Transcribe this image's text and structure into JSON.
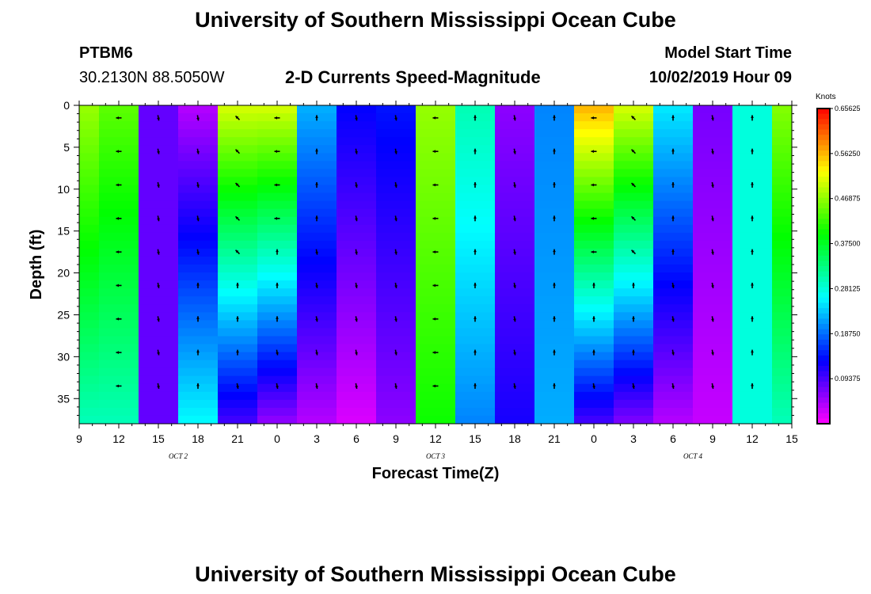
{
  "header": {
    "title_top": "University of Southern Mississippi Ocean Cube",
    "title_bottom": "University of Southern Mississippi Ocean Cube",
    "station": "PTBM6",
    "coords": "30.2130N 88.5050W",
    "subtitle": "2-D Currents Speed-Magnitude",
    "model_start_label": "Model Start Time",
    "model_start_value": "10/02/2019 Hour 09"
  },
  "chart_data": {
    "type": "heatmap",
    "title": "2-D Currents Speed-Magnitude",
    "xlabel": "Forecast Time(Z)",
    "ylabel": "Depth (ft)",
    "x_tick_labels": [
      "9",
      "12",
      "15",
      "18",
      "21",
      "0",
      "3",
      "6",
      "9",
      "12",
      "15",
      "18",
      "21",
      "0",
      "3",
      "6",
      "9",
      "12",
      "15"
    ],
    "day_labels": [
      {
        "label": "OCT 2",
        "at_tick": 2.5
      },
      {
        "label": "OCT 3",
        "at_tick": 9
      },
      {
        "label": "OCT 4",
        "at_tick": 15.5
      }
    ],
    "y_tick_labels": [
      "0",
      "5",
      "10",
      "15",
      "20",
      "25",
      "30",
      "35"
    ],
    "ylim": [
      0,
      38
    ],
    "colorbar": {
      "label": "Knots",
      "range": [
        0,
        0.65625
      ],
      "ticks": [
        "0.65625",
        "0.56250",
        "0.46875",
        "0.37500",
        "0.28125",
        "0.18750",
        "0.09375"
      ]
    },
    "columns": [
      {
        "x": 0,
        "speed_top": 0.47,
        "speed_bottom": 0.3
      },
      {
        "x": 1,
        "speed_top": 0.44,
        "speed_bottom": 0.3
      },
      {
        "x": 2,
        "speed_top": 0.08,
        "speed_bottom": 0.08
      },
      {
        "x": 3,
        "speed_top": 0.04,
        "speed_bottom": 0.26
      },
      {
        "x": 4,
        "speed_top": 0.5,
        "speed_bottom": 0.1
      },
      {
        "x": 5,
        "speed_top": 0.5,
        "speed_bottom": 0.06
      },
      {
        "x": 6,
        "speed_top": 0.22,
        "speed_bottom": 0.04
      },
      {
        "x": 7,
        "speed_top": 0.13,
        "speed_bottom": 0.02
      },
      {
        "x": 8,
        "speed_top": 0.14,
        "speed_bottom": 0.06
      },
      {
        "x": 9,
        "speed_top": 0.47,
        "speed_bottom": 0.4
      },
      {
        "x": 10,
        "speed_top": 0.3,
        "speed_bottom": 0.2
      },
      {
        "x": 11,
        "speed_top": 0.06,
        "speed_bottom": 0.12
      },
      {
        "x": 12,
        "speed_top": 0.2,
        "speed_bottom": 0.22
      },
      {
        "x": 13,
        "speed_top": 0.56,
        "speed_bottom": 0.1
      },
      {
        "x": 14,
        "speed_top": 0.5,
        "speed_bottom": 0.07
      },
      {
        "x": 15,
        "speed_top": 0.25,
        "speed_bottom": 0.04
      },
      {
        "x": 16,
        "speed_top": 0.07,
        "speed_bottom": 0.03
      },
      {
        "x": 17,
        "speed_top": 0.28,
        "speed_bottom": 0.28
      },
      {
        "x": 18,
        "speed_top": 0.46,
        "speed_bottom": 0.3
      }
    ]
  }
}
